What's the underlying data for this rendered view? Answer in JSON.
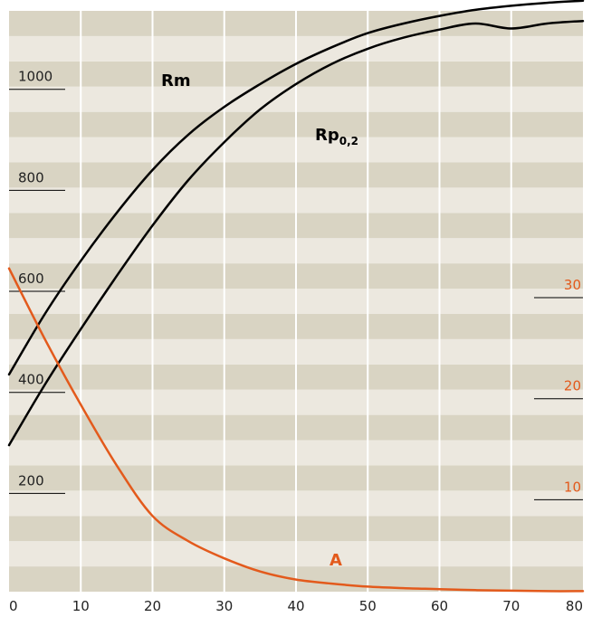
{
  "chart_data": {
    "type": "line",
    "title": "",
    "xlabel": "",
    "ylabel": "",
    "xlim": [
      0,
      80
    ],
    "ylim": [
      0,
      1150
    ],
    "x_ticks": [
      0,
      10,
      20,
      30,
      40,
      50,
      60,
      70,
      80
    ],
    "y_ticks": [
      200,
      400,
      600,
      800,
      1000
    ],
    "y2_ticks": [
      10,
      20,
      30
    ],
    "y2lim": [
      0,
      57.5
    ],
    "grid": true,
    "colors": {
      "band_light": "#ece8df",
      "band_dark": "#d9d4c3",
      "rm": "#000000",
      "rp": "#000000",
      "a": "#e35a1c",
      "grid_line": "#ffffff"
    },
    "series": [
      {
        "name": "Rm",
        "axis": "left",
        "x": [
          0,
          5,
          10,
          15,
          20,
          25,
          30,
          35,
          40,
          45,
          50,
          55,
          60,
          65,
          70,
          75,
          80
        ],
        "y": [
          430,
          550,
          655,
          750,
          835,
          905,
          960,
          1005,
          1045,
          1078,
          1106,
          1125,
          1140,
          1152,
          1160,
          1166,
          1170
        ]
      },
      {
        "name": "Rp0,2",
        "axis": "left",
        "x": [
          0,
          5,
          10,
          15,
          20,
          25,
          30,
          35,
          40,
          45,
          50,
          55,
          60,
          65,
          70,
          75,
          80
        ],
        "y": [
          290,
          410,
          520,
          625,
          725,
          815,
          890,
          955,
          1005,
          1045,
          1075,
          1097,
          1113,
          1125,
          1115,
          1125,
          1130
        ]
      },
      {
        "name": "A",
        "axis": "right",
        "x": [
          0,
          5,
          10,
          15,
          20,
          25,
          30,
          35,
          40,
          45,
          50,
          55,
          60,
          65,
          70,
          75,
          80
        ],
        "y": [
          32,
          25,
          18.5,
          12.5,
          7.5,
          5,
          3.3,
          2,
          1.2,
          0.8,
          0.5,
          0.35,
          0.25,
          0.15,
          0.1,
          0.05,
          0.05
        ]
      }
    ],
    "labels": {
      "rm": "Rm",
      "rp_main": "Rp",
      "rp_sub": "0,2",
      "a": "A"
    }
  }
}
